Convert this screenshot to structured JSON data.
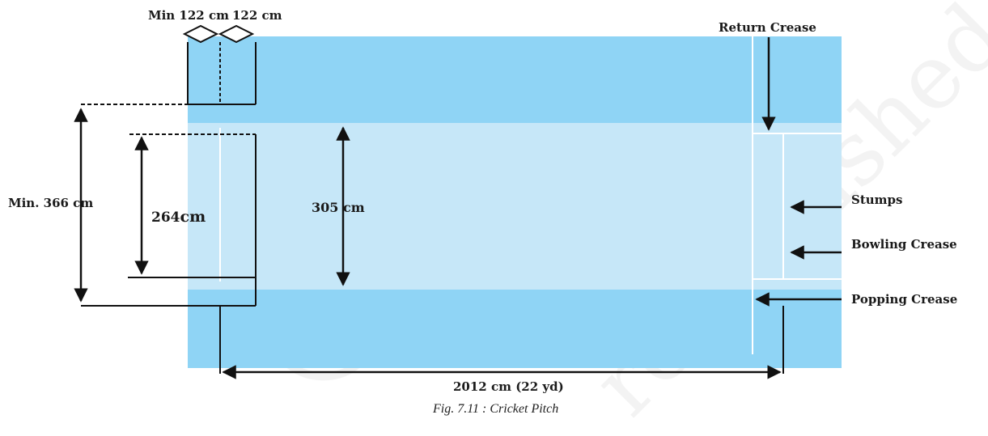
{
  "figure": {
    "caption": "Fig. 7.11 : Cricket Pitch",
    "watermark": "© NCERT e republished",
    "colors": {
      "outer_field": "#8fd4f5",
      "pitch_strip": "#c6e7f8",
      "crease_line": "#ffffff",
      "ink": "#111111",
      "watermark": "#e6e6e6"
    }
  },
  "labels": {
    "min_122_a": "Min 122 cm",
    "min_122_b": "122 cm",
    "return_crease": "Return Crease",
    "min_366": "Min. 366 cm",
    "cm_264_num": "264",
    "cm_264_unit": "cm",
    "cm_305": "305 cm",
    "stumps": "Stumps",
    "bowling_crease": "Bowling Crease",
    "popping_crease": "Popping Crease",
    "length_2012": "2012 cm (22 yd)"
  }
}
